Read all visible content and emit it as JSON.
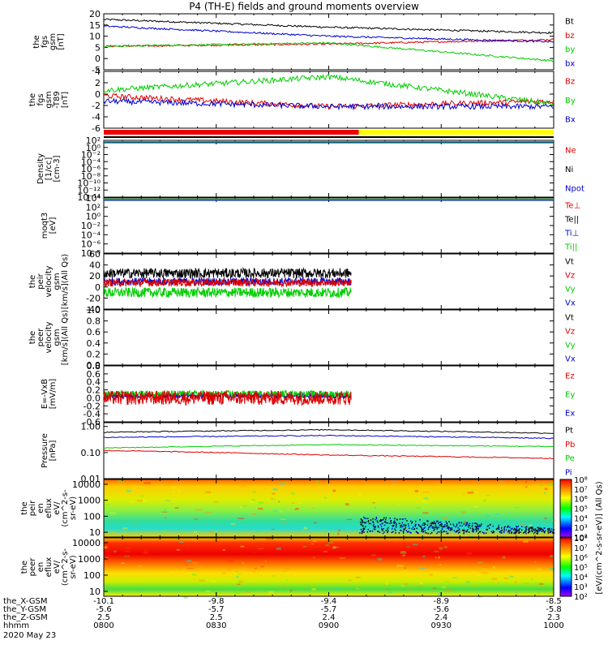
{
  "title": "P4 (TH-E) fields and ground moments overview",
  "chart_data": [
    {
      "type": "line",
      "panel": "fgs-gsm",
      "ylabel": [
        "the",
        "fgs",
        "gsm",
        "[nT]"
      ],
      "ylim": [
        -5,
        20
      ],
      "yticks": [
        "20",
        "15",
        "10",
        "5",
        "0",
        "-5"
      ],
      "series": [
        {
          "name": "Bt",
          "color": "#000000",
          "x": [
            0,
            60,
            120
          ],
          "values": [
            17.5,
            14,
            11.5
          ]
        },
        {
          "name": "bz",
          "color": "#dd0000",
          "x": [
            0,
            60,
            120
          ],
          "values": [
            5.5,
            6.5,
            8.5
          ]
        },
        {
          "name": "by",
          "color": "#00cc00",
          "x": [
            0,
            60,
            120
          ],
          "values": [
            5.5,
            7.0,
            -1
          ]
        },
        {
          "name": "bx",
          "color": "#0000cc",
          "x": [
            0,
            60,
            120
          ],
          "values": [
            14.5,
            10,
            7.5
          ]
        }
      ]
    },
    {
      "type": "line",
      "panel": "fgs-gsm-dt",
      "ylabel": [
        "the",
        "fgs",
        "gsm",
        "-T89",
        "[nT]"
      ],
      "ylim": [
        -6.5,
        4
      ],
      "yticks": [
        "4",
        "2",
        "0",
        "-2",
        "-4",
        "-6"
      ],
      "series": [
        {
          "name": "Bz",
          "color": "#dd0000",
          "x": [
            0,
            60,
            120
          ],
          "values": [
            -0.5,
            -2.5,
            -1.5
          ]
        },
        {
          "name": "By",
          "color": "#00cc00",
          "x": [
            0,
            60,
            120
          ],
          "values": [
            0.5,
            3.0,
            -2.0
          ]
        },
        {
          "name": "Bx",
          "color": "#0000cc",
          "x": [
            0,
            60,
            120
          ],
          "values": [
            -1.5,
            -2.5,
            -2.5
          ]
        }
      ]
    },
    {
      "type": "bar",
      "panel": "mode-bar",
      "segments": [
        {
          "from": 0,
          "to": 68,
          "color": "#ee0000"
        },
        {
          "from": 68,
          "to": 120,
          "color": "#ffff00"
        }
      ]
    },
    {
      "type": "line",
      "panel": "density",
      "ylabel": [
        "Density",
        "[1/cc]",
        "[cm-3]"
      ],
      "yticks": [
        "10²",
        "10⁰",
        "10⁻²",
        "10⁻⁴",
        "10⁻⁶",
        "10⁻⁸",
        "10⁻¹⁰",
        "10⁻¹²",
        "10⁻¹⁴"
      ],
      "series": [
        {
          "name": "Ne",
          "color": "#dd0000"
        },
        {
          "name": "Ni",
          "color": "#000000"
        },
        {
          "name": "Npot",
          "color": "#0000cc"
        }
      ]
    },
    {
      "type": "line",
      "panel": "temperature",
      "ylabel": [
        "moqt3",
        "[eV]"
      ],
      "yticks": [
        "10⁴",
        "10²",
        "10⁰",
        "10⁻²",
        "10⁻⁴",
        "10⁻⁶",
        "10⁻⁸"
      ],
      "series": [
        {
          "name": "Te⊥",
          "color": "#dd0000"
        },
        {
          "name": "Te||",
          "color": "#000000"
        },
        {
          "name": "Ti⊥",
          "color": "#0000cc"
        },
        {
          "name": "Ti||",
          "color": "#00cc00"
        }
      ]
    },
    {
      "type": "line",
      "panel": "peir-velocity",
      "ylabel": [
        "the",
        "peir",
        "velocity",
        "gsm",
        "[km/s](All Qs)"
      ],
      "ylim": [
        -40,
        60
      ],
      "yticks": [
        "60",
        "40",
        "20",
        "0",
        "-20",
        "-40"
      ],
      "series": [
        {
          "name": "Vt",
          "color": "#000000",
          "x": [
            0,
            66
          ],
          "values": [
            25,
            25
          ]
        },
        {
          "name": "Vz",
          "color": "#dd0000",
          "x": [
            0,
            66
          ],
          "values": [
            8,
            8
          ]
        },
        {
          "name": "Vy",
          "color": "#00cc00",
          "x": [
            0,
            66
          ],
          "values": [
            -10,
            -10
          ]
        },
        {
          "name": "Vx",
          "color": "#0000cc",
          "x": [
            0,
            66
          ],
          "values": [
            10,
            10
          ]
        }
      ]
    },
    {
      "type": "line",
      "panel": "peer-velocity",
      "ylabel": [
        "the",
        "peer",
        "velocity",
        "gsm",
        "[km/s](All Qs)"
      ],
      "ylim": [
        0,
        1
      ],
      "yticks": [
        "1.0",
        "0.8",
        "0.6",
        "0.4",
        "0.2",
        "0.0"
      ],
      "series": [
        {
          "name": "Vt",
          "color": "#000000"
        },
        {
          "name": "Vz",
          "color": "#dd0000"
        },
        {
          "name": "Vy",
          "color": "#00cc00"
        },
        {
          "name": "Vx",
          "color": "#0000cc"
        }
      ]
    },
    {
      "type": "line",
      "panel": "efield",
      "ylabel": [
        "E=-VxB",
        "[mV/m]"
      ],
      "ylim": [
        -0.6,
        0.8
      ],
      "yticks": [
        "0.8",
        "0.6",
        "0.4",
        "0.2",
        "0.0",
        "-0.2",
        "-0.4",
        "-0.6"
      ],
      "series": [
        {
          "name": "Ez",
          "color": "#dd0000",
          "x": [
            0,
            66
          ],
          "values": [
            0,
            0
          ]
        },
        {
          "name": "Ey",
          "color": "#00cc00",
          "x": [
            0,
            66
          ],
          "values": [
            0.1,
            0.1
          ]
        },
        {
          "name": "Ex",
          "color": "#0000cc",
          "x": [
            0,
            66
          ],
          "values": [
            0.05,
            0.05
          ]
        }
      ]
    },
    {
      "type": "line",
      "panel": "pressure",
      "ylabel": [
        "Pressure",
        "[nPa]"
      ],
      "yscale": "log",
      "ylim": [
        0.01,
        1.4
      ],
      "yticks": [
        "1.00",
        "0.10",
        "0.01"
      ],
      "series": [
        {
          "name": "Pt",
          "color": "#000000",
          "x": [
            0,
            60,
            120
          ],
          "values": [
            0.6,
            0.75,
            0.55
          ]
        },
        {
          "name": "Pb",
          "color": "#dd0000",
          "x": [
            0,
            60,
            120
          ],
          "values": [
            0.12,
            0.08,
            0.06
          ]
        },
        {
          "name": "Pe",
          "color": "#00cc00",
          "x": [
            0,
            60,
            120
          ],
          "values": [
            0.15,
            0.2,
            0.17
          ]
        },
        {
          "name": "Pi",
          "color": "#0000cc",
          "x": [
            0,
            60,
            120
          ],
          "values": [
            0.38,
            0.45,
            0.35
          ]
        }
      ]
    },
    {
      "type": "heatmap",
      "panel": "peir-eflux",
      "ylabel": [
        "the",
        "peir",
        "en",
        "eflux",
        "eV/",
        "(cm^2-s-",
        "sr-eV)"
      ],
      "yscale": "log",
      "ylim": [
        5,
        20000
      ],
      "yticks": [
        "10000",
        "1000",
        "100",
        "10"
      ]
    },
    {
      "type": "heatmap",
      "panel": "peer-eflux",
      "ylabel": [
        "the",
        "peer",
        "en",
        "eflux",
        "eV/",
        "(cm^2-s-",
        "sr-eV)"
      ],
      "yscale": "log",
      "ylim": [
        5,
        20000
      ],
      "yticks": [
        "10000",
        "1000",
        "100",
        "10"
      ]
    }
  ],
  "colorbar": {
    "label": "[eV/(cm^2-s-sr-eV)] (All Qs)",
    "peir_ticks": [
      "10⁸",
      "10⁷",
      "10⁶",
      "10⁵",
      "10⁴",
      "10³",
      "10²"
    ],
    "peer_ticks": [
      "10⁸",
      "10⁷",
      "10⁶",
      "10⁵",
      "10⁴",
      "10³",
      "10²"
    ]
  },
  "xaxis": {
    "row_labels": [
      "the_X-GSM",
      "the_Y-GSM",
      "the_Z-GSM",
      "hhmm",
      "2020 May 23"
    ],
    "ticks": [
      {
        "x": -10.1,
        "y": -5.6,
        "z": 2.5,
        "time": "0800"
      },
      {
        "x": -9.8,
        "y": -5.7,
        "z": 2.5,
        "time": "0830"
      },
      {
        "x": -9.4,
        "y": -5.7,
        "z": 2.4,
        "time": "0900"
      },
      {
        "x": -8.9,
        "y": -5.6,
        "z": 2.4,
        "time": "0930"
      },
      {
        "x": -8.5,
        "y": -5.8,
        "z": 2.3,
        "time": "1000"
      }
    ]
  }
}
